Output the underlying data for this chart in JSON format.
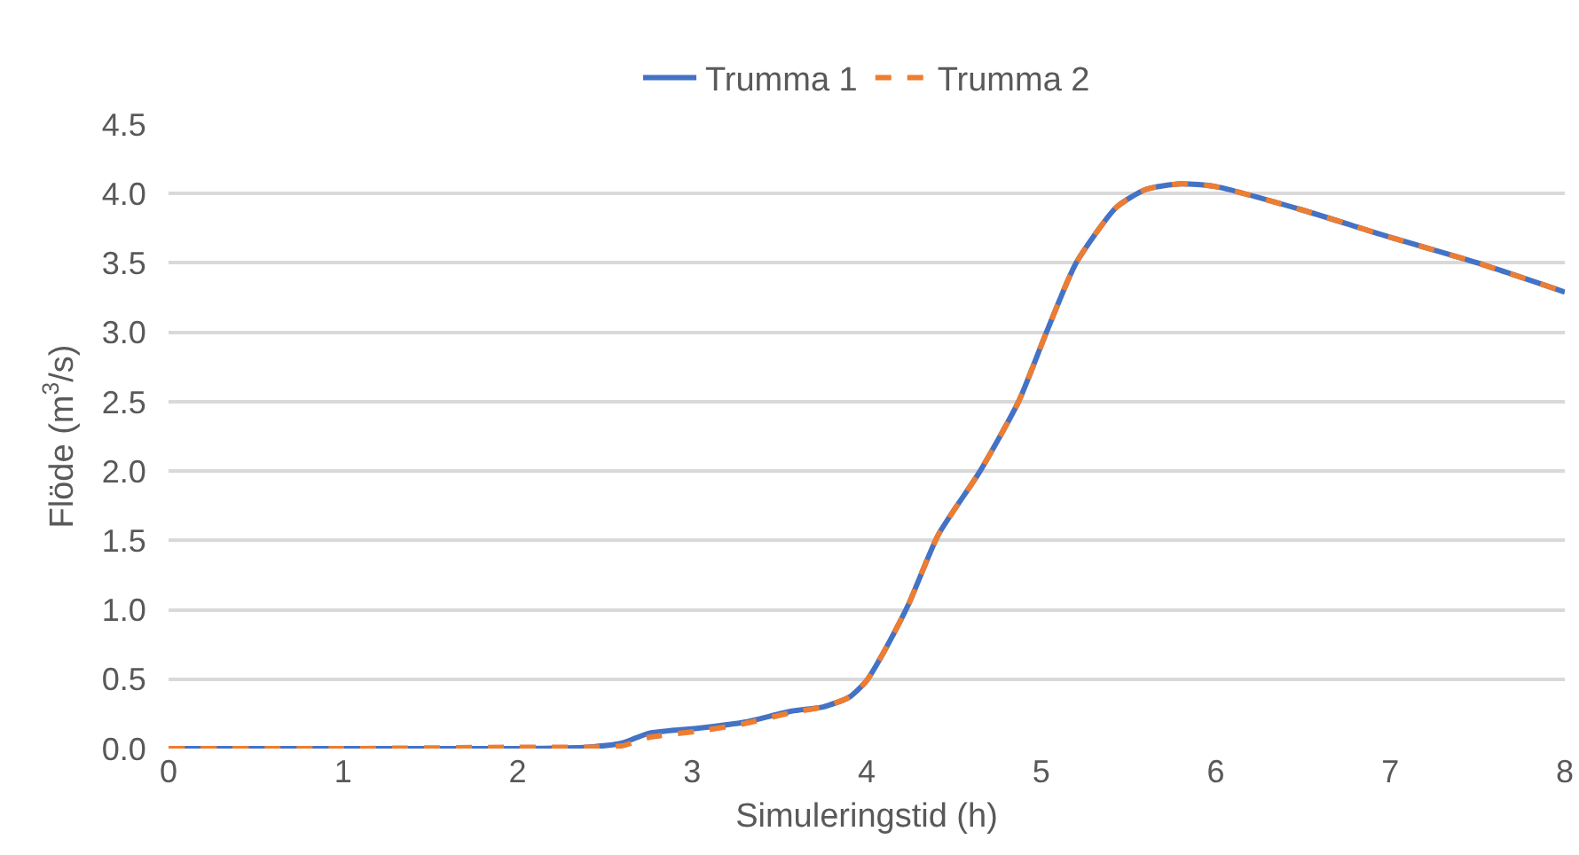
{
  "chart_data": {
    "type": "line",
    "xlabel": "Simuleringstid (h)",
    "ylabel": "Flöde (m$^{3}$/s)",
    "x": [
      0,
      1,
      2,
      2.4,
      2.6,
      2.75,
      3.06,
      3.3,
      3.57,
      3.75,
      3.9,
      4.0,
      4.1,
      4.24,
      4.41,
      4.65,
      4.87,
      5.03,
      5.2,
      5.43,
      5.6,
      5.8,
      6.0,
      6.5,
      6.96,
      7.5,
      8
    ],
    "series": [
      {
        "name": "Trumma 1",
        "color": "#4472c4",
        "line_style": "solid",
        "values": [
          0,
          0,
          0,
          0.01,
          0.04,
          0.11,
          0.15,
          0.19,
          0.27,
          0.3,
          0.37,
          0.49,
          0.7,
          1.04,
          1.54,
          2.0,
          2.5,
          3.0,
          3.5,
          3.9,
          4.03,
          4.07,
          4.05,
          3.88,
          3.7,
          3.5,
          3.29
        ]
      },
      {
        "name": "Trumma 2",
        "color": "#ed7d31",
        "line_style": "dashed",
        "values": [
          0,
          0,
          0.01,
          0.01,
          0.02,
          0.08,
          0.13,
          0.18,
          0.26,
          0.3,
          0.37,
          0.49,
          0.7,
          1.04,
          1.54,
          2.0,
          2.5,
          3.0,
          3.5,
          3.9,
          4.03,
          4.07,
          4.05,
          3.88,
          3.7,
          3.5,
          3.29
        ]
      }
    ],
    "xlim": [
      0,
      8
    ],
    "xticks": [
      0,
      1,
      2,
      3,
      4,
      5,
      6,
      7,
      8
    ],
    "ylim": [
      0,
      4.5
    ],
    "yticks": [
      {
        "value": 0,
        "label": "0.0"
      },
      {
        "value": 0.5,
        "label": "0.5"
      },
      {
        "value": 1,
        "label": "1.0"
      },
      {
        "value": 1.5,
        "label": "1.5"
      },
      {
        "value": 2,
        "label": "2.0"
      },
      {
        "value": 2.5,
        "label": "2.5"
      },
      {
        "value": 3,
        "label": "3.0"
      },
      {
        "value": 3.5,
        "label": "3.5"
      },
      {
        "value": 4,
        "label": "4.0"
      },
      {
        "value": 4.5,
        "label": "4.5"
      }
    ],
    "grid": "y",
    "legend": "top",
    "marker": "none"
  }
}
